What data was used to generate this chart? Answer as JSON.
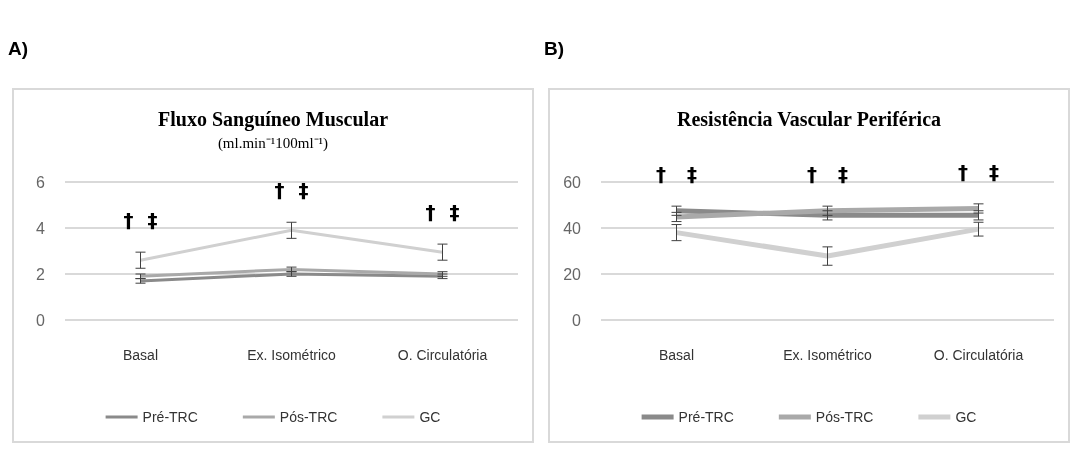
{
  "chart_data": [
    {
      "type": "line",
      "title": "Fluxo Sanguíneo Muscular",
      "subtitle": "(ml.min⁻¹100ml⁻¹)",
      "categories": [
        "Basal",
        "Ex. Isométrico",
        "O. Circulatória"
      ],
      "series": [
        {
          "name": "Pré-TRC",
          "color": "#8a8a8a",
          "values": [
            1.7,
            2.0,
            1.9
          ],
          "errors": [
            0.1,
            0.1,
            0.1
          ]
        },
        {
          "name": "Pós-TRC",
          "color": "#a9a9a9",
          "values": [
            1.9,
            2.2,
            2.0
          ],
          "errors": [
            0.1,
            0.1,
            0.1
          ]
        },
        {
          "name": "GC",
          "color": "#d0d0d0",
          "values": [
            2.6,
            3.9,
            2.95
          ],
          "errors": [
            0.35,
            0.35,
            0.35
          ]
        }
      ],
      "ylim": [
        0,
        6
      ],
      "yticks": [
        0,
        2,
        4,
        6
      ],
      "grid": "y",
      "legend": "bottom",
      "marker": "none",
      "line_style": "solid",
      "annotations": [
        "A)",
        "†  ‡",
        "†  ‡",
        "†  ‡"
      ]
    },
    {
      "type": "line",
      "title": "Resistência Vascular Periférica",
      "categories": [
        "Basal",
        "Ex. Isométrico",
        "O. Circulatória"
      ],
      "series": [
        {
          "name": "Pré-TRC",
          "color": "#8a8a8a",
          "values": [
            47.5,
            45.5,
            45.5
          ],
          "errors": [
            2,
            2,
            2
          ]
        },
        {
          "name": "Pós-TRC",
          "color": "#a9a9a9",
          "values": [
            44.8,
            47.5,
            48.5
          ],
          "errors": [
            2,
            2,
            2
          ]
        },
        {
          "name": "GC",
          "color": "#d0d0d0",
          "values": [
            38,
            27.8,
            39.5
          ],
          "errors": [
            3.5,
            4,
            3
          ]
        }
      ],
      "ylim": [
        0,
        60
      ],
      "yticks": [
        0,
        20,
        40,
        60
      ],
      "grid": "y",
      "legend": "bottom",
      "marker": "none",
      "line_style": "solid",
      "annotations": [
        "B)",
        "†   ‡",
        "†   ‡",
        "†   ‡"
      ]
    }
  ]
}
